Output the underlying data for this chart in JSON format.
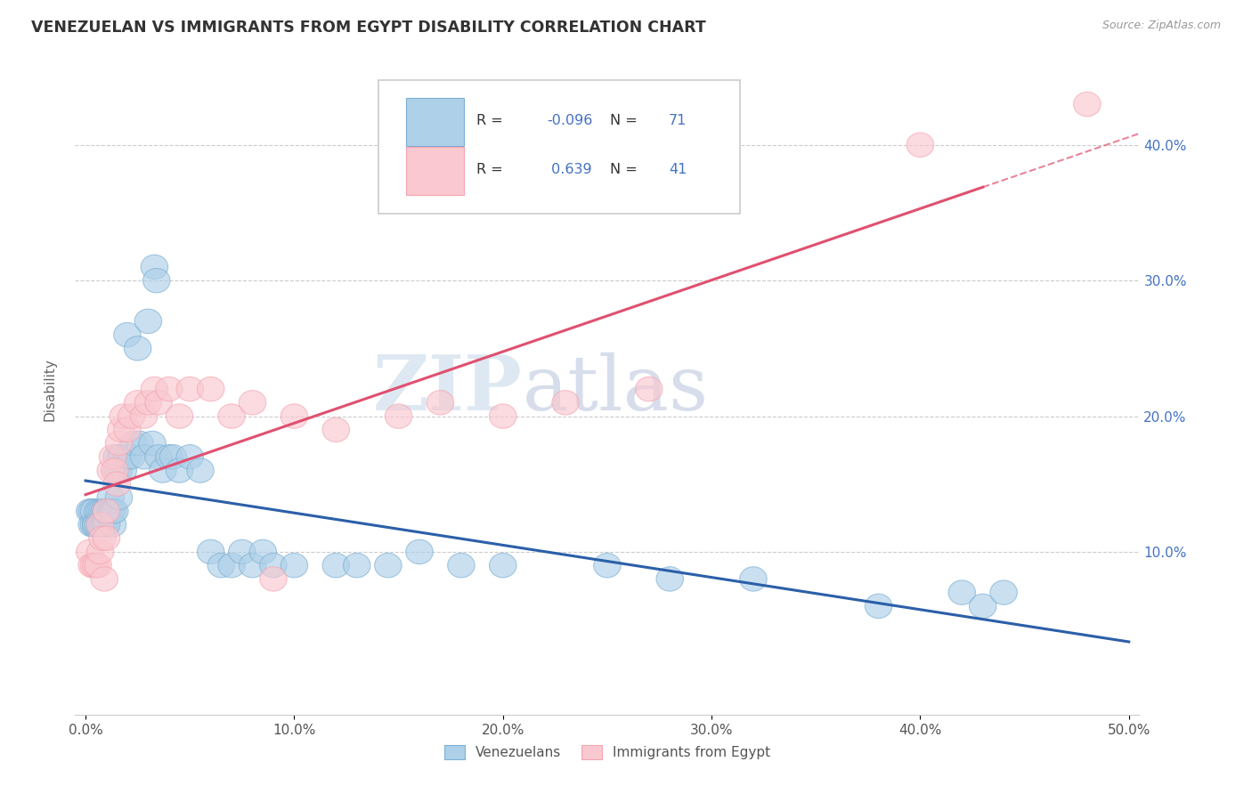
{
  "title": "VENEZUELAN VS IMMIGRANTS FROM EGYPT DISABILITY CORRELATION CHART",
  "source": "Source: ZipAtlas.com",
  "ylabel": "Disability",
  "xlabel": "",
  "xlim": [
    -0.005,
    0.505
  ],
  "ylim": [
    -0.02,
    0.46
  ],
  "xticks": [
    0.0,
    0.1,
    0.2,
    0.3,
    0.4,
    0.5
  ],
  "yticks": [
    0.1,
    0.2,
    0.3,
    0.4
  ],
  "watermark_zip": "ZIP",
  "watermark_atlas": "atlas",
  "R_blue": -0.096,
  "N_blue": 71,
  "R_pink": 0.639,
  "N_pink": 41,
  "blue_color": "#7BAFD4",
  "pink_color": "#F4A4B0",
  "blue_fill": "#AED0E8",
  "pink_fill": "#F9C8D0",
  "blue_line_color": "#2B5FA8",
  "pink_line_color": "#E05070",
  "venezuelan_x": [
    0.002,
    0.003,
    0.003,
    0.004,
    0.004,
    0.005,
    0.005,
    0.006,
    0.006,
    0.007,
    0.007,
    0.008,
    0.008,
    0.009,
    0.009,
    0.01,
    0.01,
    0.01,
    0.01,
    0.01,
    0.01,
    0.012,
    0.012,
    0.013,
    0.013,
    0.014,
    0.015,
    0.015,
    0.016,
    0.016,
    0.017,
    0.018,
    0.02,
    0.02,
    0.022,
    0.023,
    0.025,
    0.026,
    0.028,
    0.03,
    0.032,
    0.033,
    0.034,
    0.035,
    0.037,
    0.04,
    0.042,
    0.045,
    0.05,
    0.055,
    0.06,
    0.065,
    0.07,
    0.075,
    0.08,
    0.085,
    0.09,
    0.1,
    0.12,
    0.13,
    0.145,
    0.16,
    0.18,
    0.2,
    0.25,
    0.28,
    0.32,
    0.38,
    0.42,
    0.43,
    0.44
  ],
  "venezuelan_y": [
    0.13,
    0.13,
    0.12,
    0.12,
    0.13,
    0.12,
    0.12,
    0.13,
    0.12,
    0.12,
    0.13,
    0.13,
    0.12,
    0.12,
    0.13,
    0.13,
    0.13,
    0.12,
    0.12,
    0.12,
    0.13,
    0.14,
    0.13,
    0.12,
    0.13,
    0.13,
    0.16,
    0.17,
    0.16,
    0.14,
    0.17,
    0.16,
    0.26,
    0.17,
    0.17,
    0.18,
    0.25,
    0.18,
    0.17,
    0.27,
    0.18,
    0.31,
    0.3,
    0.17,
    0.16,
    0.17,
    0.17,
    0.16,
    0.17,
    0.16,
    0.1,
    0.09,
    0.09,
    0.1,
    0.09,
    0.1,
    0.09,
    0.09,
    0.09,
    0.09,
    0.09,
    0.1,
    0.09,
    0.09,
    0.09,
    0.08,
    0.08,
    0.06,
    0.07,
    0.06,
    0.07
  ],
  "egypt_x": [
    0.002,
    0.003,
    0.004,
    0.005,
    0.006,
    0.007,
    0.007,
    0.008,
    0.009,
    0.01,
    0.01,
    0.012,
    0.013,
    0.014,
    0.015,
    0.016,
    0.017,
    0.018,
    0.02,
    0.022,
    0.025,
    0.028,
    0.03,
    0.033,
    0.035,
    0.04,
    0.045,
    0.05,
    0.06,
    0.07,
    0.08,
    0.09,
    0.1,
    0.12,
    0.15,
    0.17,
    0.2,
    0.23,
    0.27,
    0.4,
    0.48
  ],
  "egypt_y": [
    0.1,
    0.09,
    0.09,
    0.09,
    0.09,
    0.1,
    0.12,
    0.11,
    0.08,
    0.13,
    0.11,
    0.16,
    0.17,
    0.16,
    0.15,
    0.18,
    0.19,
    0.2,
    0.19,
    0.2,
    0.21,
    0.2,
    0.21,
    0.22,
    0.21,
    0.22,
    0.2,
    0.22,
    0.22,
    0.2,
    0.21,
    0.08,
    0.2,
    0.19,
    0.2,
    0.21,
    0.2,
    0.21,
    0.22,
    0.4,
    0.43
  ]
}
